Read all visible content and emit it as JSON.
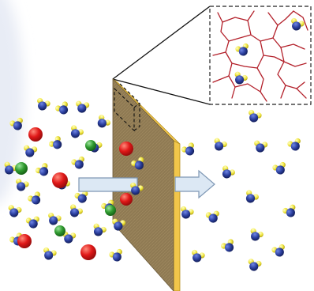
{
  "figure": {
    "description_alt": "",
    "colors": {
      "background": "#ffffff",
      "membrane_face": "#8f7a53",
      "membrane_edge": "#f2c64a",
      "inset_border": "#222222",
      "inset_network": "#b3202a",
      "arrow_fill": "#dce8f4",
      "arrow_stroke": "#7f98b5",
      "water_oxygen": "#2b3f9e",
      "water_hydrogen": "#f0e640",
      "ion_red": "#e01818",
      "ion_green": "#2f9a2f"
    },
    "icons": {
      "water_molecule": "water-molecule-icon",
      "red_ion": "red-ion-icon",
      "green_ion": "green-ion-icon",
      "flow_arrow": "flow-arrow-icon"
    }
  }
}
